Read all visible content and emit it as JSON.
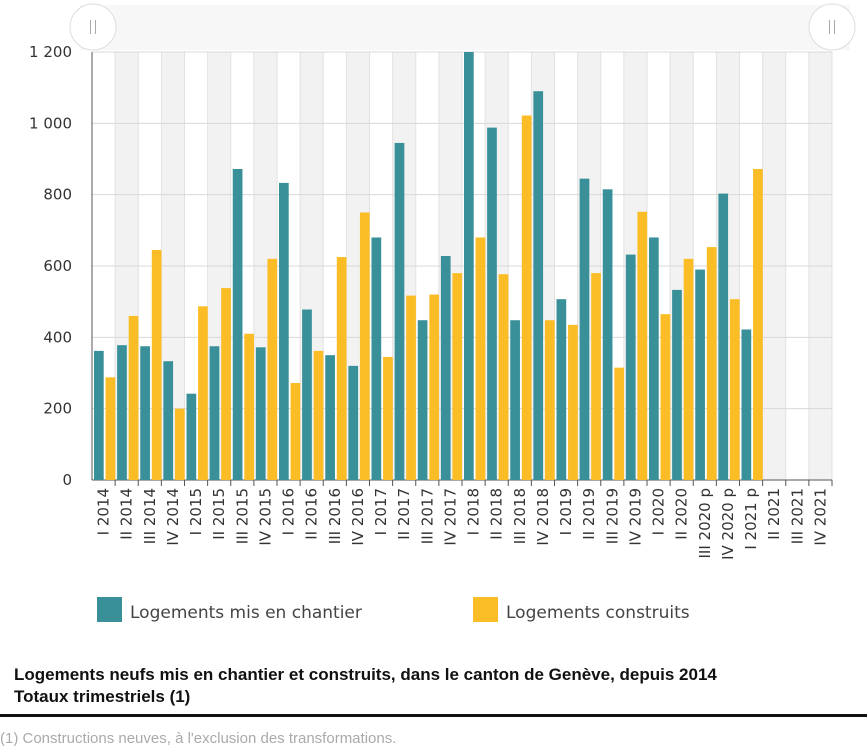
{
  "chart_data": {
    "type": "bar",
    "title": "Logements neufs mis en chantier et construits, dans le canton de Genève, depuis 2014",
    "subtitle": "Totaux trimestriels (1)",
    "note": "(1) Constructions neuves, à l'exclusion des transformations.",
    "categories": [
      "I 2014",
      "II 2014",
      "III 2014",
      "IV 2014",
      "I 2015",
      "II 2015",
      "III 2015",
      "IV 2015",
      "I 2016",
      "II 2016",
      "III 2016",
      "IV 2016",
      "I 2017",
      "II 2017",
      "III 2017",
      "IV 2017",
      "I 2018",
      "II 2018",
      "III 2018",
      "IV 2018",
      "I 2019",
      "II 2019",
      "III 2019",
      "IV 2019",
      "I 2020",
      "II 2020",
      "III 2020 p",
      "IV 2020 p",
      "I 2021 p",
      "II 2021",
      "III 2021",
      "IV 2021"
    ],
    "series": [
      {
        "name": "Logements mis en chantier",
        "color": "#3a9099",
        "values": [
          362,
          378,
          375,
          333,
          242,
          375,
          872,
          372,
          833,
          478,
          350,
          320,
          680,
          945,
          448,
          628,
          1200,
          988,
          448,
          1090,
          507,
          845,
          815,
          632,
          680,
          533,
          590,
          803,
          422,
          null,
          null,
          null
        ]
      },
      {
        "name": "Logements construits",
        "color": "#fbbd26",
        "values": [
          288,
          460,
          645,
          200,
          487,
          538,
          410,
          620,
          272,
          362,
          625,
          750,
          345,
          517,
          520,
          580,
          680,
          577,
          1022,
          448,
          435,
          580,
          315,
          752,
          465,
          620,
          653,
          507,
          872,
          null,
          null,
          null
        ]
      }
    ],
    "ylim": [
      0,
      1200
    ],
    "yticks": [
      0,
      200,
      400,
      600,
      800,
      {
        "value": 1000,
        "label": "1 000"
      },
      {
        "value": 1200,
        "label": "1 200"
      }
    ],
    "grid": true
  }
}
